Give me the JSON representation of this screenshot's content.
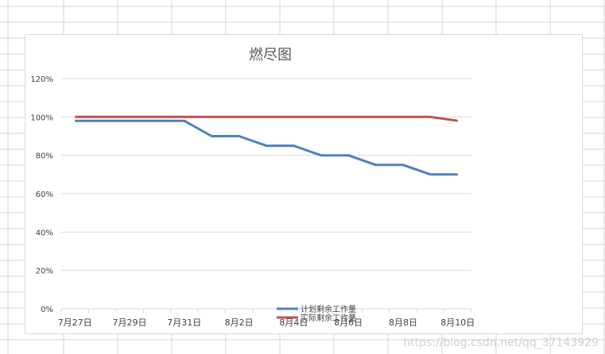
{
  "watermark": "https://blog.csdn.net/qq_37143929",
  "colors": {
    "sheet_grid": "#d4d4d4",
    "plot_grid": "#d9d9d9",
    "axis_text": "#404040",
    "title_text": "#595959"
  },
  "chart_data": {
    "type": "line",
    "title": "燃尽图",
    "xlabel": "",
    "ylabel": "",
    "ylim": [
      0,
      1.2
    ],
    "y_tick_values": [
      0,
      0.2,
      0.4,
      0.6,
      0.8,
      1.0,
      1.2
    ],
    "y_tick_labels": [
      "0%",
      "20%",
      "40%",
      "60%",
      "80%",
      "100%",
      "120%"
    ],
    "categories": [
      "7月27日",
      "7月28日",
      "7月29日",
      "7月30日",
      "7月31日",
      "8月1日",
      "8月2日",
      "8月3日",
      "8月4日",
      "8月5日",
      "8月6日",
      "8月7日",
      "8月8日",
      "8月9日",
      "8月10日"
    ],
    "x_tick_labels": [
      "7月27日",
      "7月29日",
      "7月31日",
      "8月2日",
      "8月4日",
      "8月6日",
      "8月8日",
      "8月10日"
    ],
    "grid": true,
    "legend_position": "bottom",
    "series": [
      {
        "name": "计划剩余工作量",
        "color": "#4f81bd",
        "values": [
          0.98,
          0.98,
          0.98,
          0.98,
          0.98,
          0.9,
          0.9,
          0.85,
          0.85,
          0.8,
          0.8,
          0.75,
          0.75,
          0.7,
          0.7
        ]
      },
      {
        "name": "实际剩余工作量",
        "color": "#c0504d",
        "values": [
          1.0,
          1.0,
          1.0,
          1.0,
          1.0,
          1.0,
          1.0,
          1.0,
          1.0,
          1.0,
          1.0,
          1.0,
          1.0,
          1.0,
          0.98
        ]
      }
    ]
  }
}
